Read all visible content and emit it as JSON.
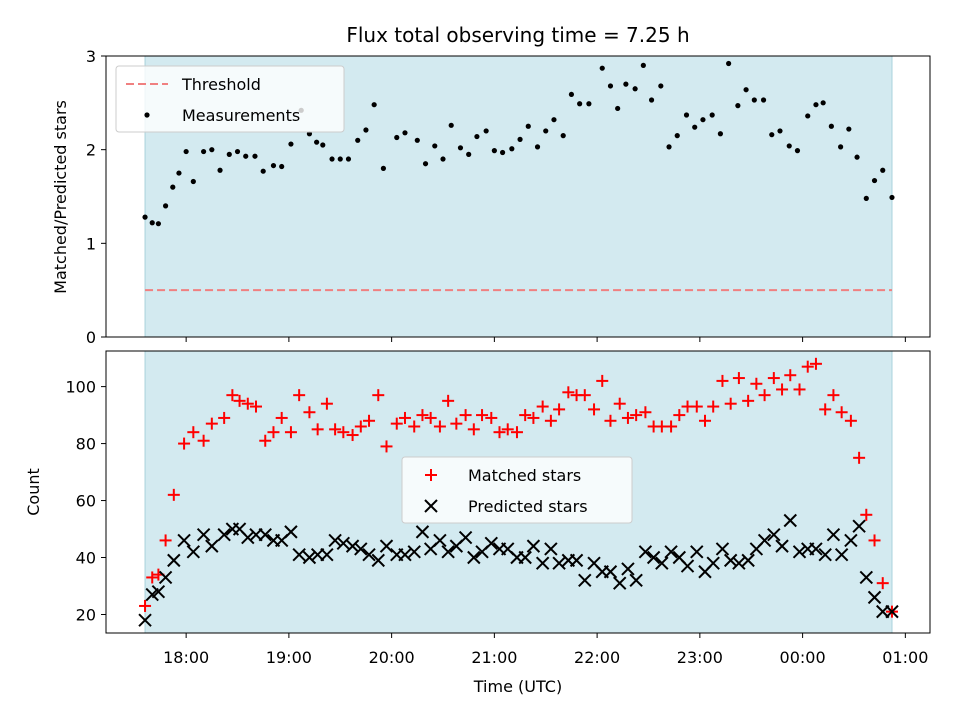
{
  "chart_data": [
    {
      "type": "scatter",
      "title": "Flux total observing time = 7.25 h",
      "xlabel": "",
      "ylabel": "Matched/Predicted stars",
      "x_unit": "hours since 17:00 UTC",
      "xlim": [
        17.22,
        25.24
      ],
      "ylim": [
        0,
        3
      ],
      "yticks": [
        0,
        1,
        2,
        3
      ],
      "shaded_span": [
        17.6,
        24.87
      ],
      "shade_color": "#d3eaf0",
      "legend_position": "upper left",
      "threshold": {
        "name": "Threshold",
        "value": 0.5,
        "color": "#f08080",
        "style": "dashed"
      },
      "series": [
        {
          "name": "Measurements",
          "color": "#000000",
          "marker": "dot",
          "x": [
            17.6,
            17.67,
            17.73,
            17.8,
            17.87,
            17.93,
            18.0,
            18.07,
            18.17,
            18.25,
            18.33,
            18.42,
            18.5,
            18.58,
            18.67,
            18.75,
            18.85,
            18.93,
            19.02,
            19.12,
            19.2,
            19.27,
            19.33,
            19.42,
            19.5,
            19.58,
            19.67,
            19.75,
            19.83,
            19.92,
            20.05,
            20.13,
            20.25,
            20.33,
            20.42,
            20.5,
            20.58,
            20.67,
            20.75,
            20.83,
            20.92,
            21.0,
            21.08,
            21.17,
            21.25,
            21.33,
            21.42,
            21.5,
            21.58,
            21.67,
            21.75,
            21.83,
            21.92,
            22.05,
            22.13,
            22.2,
            22.28,
            22.37,
            22.45,
            22.53,
            22.62,
            22.7,
            22.78,
            22.87,
            22.95,
            23.03,
            23.12,
            23.2,
            23.28,
            23.37,
            23.45,
            23.53,
            23.62,
            23.7,
            23.78,
            23.87,
            23.95,
            24.05,
            24.13,
            24.2,
            24.28,
            24.37,
            24.45,
            24.53,
            24.62,
            24.7,
            24.78,
            24.87
          ],
          "y": [
            1.28,
            1.22,
            1.21,
            1.4,
            1.6,
            1.75,
            1.98,
            1.66,
            1.98,
            2.0,
            1.78,
            1.95,
            1.98,
            1.93,
            1.93,
            1.77,
            1.83,
            1.82,
            2.06,
            2.42,
            2.17,
            2.08,
            2.05,
            1.9,
            1.9,
            1.9,
            2.1,
            2.21,
            2.48,
            1.8,
            2.13,
            2.18,
            2.1,
            1.85,
            2.04,
            1.9,
            2.26,
            2.02,
            1.95,
            2.14,
            2.2,
            1.99,
            1.97,
            2.01,
            2.11,
            2.25,
            2.03,
            2.2,
            2.32,
            2.15,
            2.59,
            2.49,
            2.49,
            2.87,
            2.68,
            2.44,
            2.7,
            2.65,
            2.9,
            2.53,
            2.68,
            2.03,
            2.15,
            2.37,
            2.24,
            2.32,
            2.37,
            2.17,
            2.92,
            2.47,
            2.64,
            2.53,
            2.53,
            2.16,
            2.2,
            2.04,
            1.99,
            2.36,
            2.48,
            2.5,
            2.25,
            2.03,
            2.22,
            1.92,
            1.48,
            1.67,
            1.78,
            1.49
          ]
        }
      ]
    },
    {
      "type": "scatter",
      "title": "",
      "xlabel": "Time (UTC)",
      "ylabel": "Count",
      "x_unit": "hours since 17:00 UTC",
      "xlim": [
        17.22,
        25.24
      ],
      "ylim": [
        13.5,
        112.5
      ],
      "yticks": [
        20,
        40,
        60,
        80,
        100
      ],
      "xticks": [
        18,
        19,
        20,
        21,
        22,
        23,
        24,
        25
      ],
      "xtick_labels": [
        "18:00",
        "19:00",
        "20:00",
        "21:00",
        "22:00",
        "23:00",
        "00:00",
        "01:00"
      ],
      "shaded_span": [
        17.6,
        24.87
      ],
      "shade_color": "#d3eaf0",
      "legend_position": "center",
      "series": [
        {
          "name": "Matched stars",
          "color": "#ff0000",
          "marker": "plus",
          "x": [
            17.6,
            17.67,
            17.73,
            17.8,
            17.88,
            17.98,
            18.07,
            18.17,
            18.25,
            18.37,
            18.45,
            18.52,
            18.6,
            18.68,
            18.77,
            18.85,
            18.93,
            19.02,
            19.1,
            19.2,
            19.28,
            19.37,
            19.45,
            19.53,
            19.62,
            19.7,
            19.78,
            19.87,
            19.95,
            20.05,
            20.13,
            20.22,
            20.3,
            20.38,
            20.47,
            20.55,
            20.63,
            20.72,
            20.8,
            20.88,
            20.97,
            21.05,
            21.13,
            21.22,
            21.3,
            21.38,
            21.47,
            21.55,
            21.63,
            21.72,
            21.8,
            21.88,
            21.97,
            22.05,
            22.13,
            22.22,
            22.3,
            22.38,
            22.47,
            22.55,
            22.63,
            22.72,
            22.8,
            22.88,
            22.97,
            23.05,
            23.13,
            23.22,
            23.3,
            23.38,
            23.47,
            23.55,
            23.63,
            23.72,
            23.8,
            23.88,
            23.97,
            24.05,
            24.13,
            24.22,
            24.3,
            24.38,
            24.47,
            24.55,
            24.62,
            24.7,
            24.78,
            24.87
          ],
          "y": [
            23,
            33,
            34,
            46,
            62,
            80,
            84,
            81,
            87,
            89,
            97,
            95,
            94,
            93,
            81,
            84,
            89,
            84,
            97,
            91,
            85,
            94,
            85,
            84,
            83,
            86,
            88,
            97,
            79,
            87,
            89,
            86,
            90,
            89,
            86,
            95,
            87,
            90,
            85,
            90,
            89,
            84,
            85,
            84,
            90,
            89,
            93,
            88,
            92,
            98,
            97,
            97,
            92,
            102,
            88,
            94,
            89,
            90,
            91,
            86,
            86,
            86,
            90,
            93,
            93,
            88,
            93,
            102,
            94,
            103,
            95,
            101,
            97,
            103,
            99,
            104,
            99,
            107,
            108,
            92,
            97,
            91,
            88,
            75,
            55,
            46,
            31,
            21
          ]
        },
        {
          "name": "Predicted stars",
          "color": "#000000",
          "marker": "cross",
          "x": [
            17.6,
            17.67,
            17.73,
            17.8,
            17.88,
            17.98,
            18.07,
            18.17,
            18.25,
            18.37,
            18.45,
            18.52,
            18.6,
            18.68,
            18.77,
            18.85,
            18.93,
            19.02,
            19.1,
            19.2,
            19.28,
            19.37,
            19.45,
            19.53,
            19.62,
            19.7,
            19.78,
            19.87,
            19.95,
            20.05,
            20.13,
            20.22,
            20.3,
            20.38,
            20.47,
            20.55,
            20.63,
            20.72,
            20.8,
            20.88,
            20.97,
            21.05,
            21.13,
            21.22,
            21.3,
            21.38,
            21.47,
            21.55,
            21.63,
            21.72,
            21.8,
            21.88,
            21.97,
            22.05,
            22.13,
            22.22,
            22.3,
            22.38,
            22.47,
            22.55,
            22.63,
            22.72,
            22.8,
            22.88,
            22.97,
            23.05,
            23.13,
            23.22,
            23.3,
            23.38,
            23.47,
            23.55,
            23.63,
            23.72,
            23.8,
            23.88,
            23.97,
            24.05,
            24.13,
            24.22,
            24.3,
            24.38,
            24.47,
            24.55,
            24.62,
            24.7,
            24.78,
            24.87
          ],
          "y": [
            18,
            27,
            28,
            33,
            39,
            46,
            42,
            48,
            44,
            48,
            50,
            50,
            47,
            48,
            48,
            46,
            46,
            49,
            41,
            40,
            41,
            41,
            46,
            45,
            44,
            43,
            41,
            39,
            44,
            41,
            41,
            42,
            49,
            43,
            46,
            42,
            44,
            47,
            40,
            42,
            45,
            43,
            43,
            40,
            40,
            44,
            38,
            43,
            38,
            39,
            39,
            32,
            38,
            35,
            35,
            31,
            36,
            32,
            42,
            40,
            38,
            42,
            40,
            37,
            42,
            35,
            38,
            43,
            39,
            38,
            39,
            43,
            46,
            48,
            44,
            53,
            42,
            43,
            43,
            41,
            48,
            41,
            46,
            51,
            33,
            26,
            21,
            21
          ]
        }
      ]
    }
  ]
}
